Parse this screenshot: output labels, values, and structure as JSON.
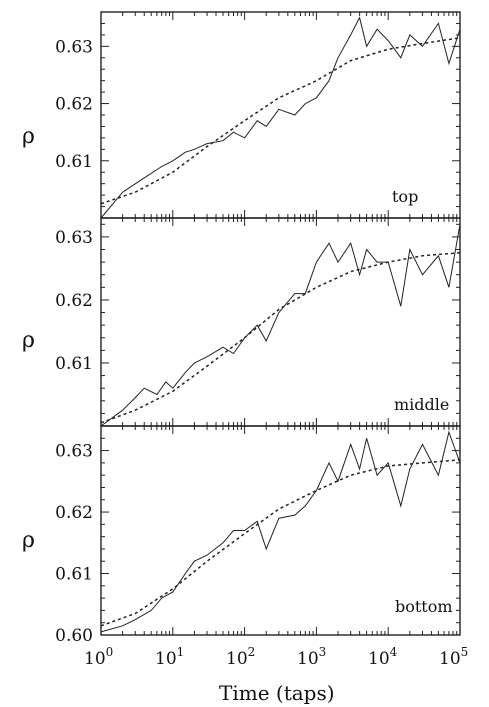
{
  "chart_data": [
    {
      "type": "line",
      "panel_label": "top",
      "ylabel": "ρ",
      "xlabel": "Time (taps)",
      "x_scale": "log",
      "xlim": [
        1,
        100000
      ],
      "ylim": [
        0.6,
        0.636
      ],
      "yticks": [
        0.61,
        0.62,
        0.63
      ],
      "ytick_labels": [
        "0.61",
        "0.62",
        "0.63"
      ],
      "series": [
        {
          "style": "solid",
          "x": [
            1,
            2,
            4,
            7,
            10,
            15,
            20,
            30,
            50,
            70,
            100,
            150,
            200,
            300,
            500,
            700,
            1000,
            1500,
            2000,
            3000,
            4000,
            5000,
            7000,
            10000,
            15000,
            20000,
            30000,
            50000,
            70000,
            100000
          ],
          "y": [
            0.6,
            0.6045,
            0.607,
            0.609,
            0.61,
            0.6115,
            0.612,
            0.613,
            0.6135,
            0.615,
            0.614,
            0.617,
            0.616,
            0.619,
            0.618,
            0.62,
            0.621,
            0.624,
            0.628,
            0.632,
            0.635,
            0.63,
            0.633,
            0.631,
            0.628,
            0.632,
            0.63,
            0.634,
            0.627,
            0.633
          ]
        },
        {
          "style": "dashed",
          "x": [
            1,
            3,
            10,
            30,
            100,
            300,
            1000,
            3000,
            10000,
            30000,
            100000
          ],
          "y": [
            0.6025,
            0.6045,
            0.608,
            0.6125,
            0.617,
            0.621,
            0.624,
            0.6275,
            0.6295,
            0.6305,
            0.6315
          ]
        }
      ]
    },
    {
      "type": "line",
      "panel_label": "middle",
      "ylabel": "ρ",
      "xlabel": "Time (taps)",
      "x_scale": "log",
      "xlim": [
        1,
        100000
      ],
      "ylim": [
        0.6,
        0.633
      ],
      "yticks": [
        0.61,
        0.62,
        0.63
      ],
      "ytick_labels": [
        "0.61",
        "0.62",
        "0.63"
      ],
      "series": [
        {
          "style": "solid",
          "x": [
            1,
            2,
            3,
            4,
            6,
            8,
            10,
            15,
            20,
            30,
            50,
            70,
            100,
            150,
            200,
            300,
            500,
            700,
            1000,
            1500,
            2000,
            3000,
            4000,
            5000,
            7000,
            10000,
            15000,
            20000,
            30000,
            50000,
            70000,
            100000
          ],
          "y": [
            0.6,
            0.6025,
            0.6045,
            0.606,
            0.605,
            0.607,
            0.606,
            0.6085,
            0.61,
            0.611,
            0.6125,
            0.6115,
            0.614,
            0.616,
            0.6135,
            0.618,
            0.621,
            0.621,
            0.626,
            0.629,
            0.626,
            0.629,
            0.624,
            0.628,
            0.626,
            0.626,
            0.619,
            0.628,
            0.624,
            0.627,
            0.622,
            0.632
          ]
        },
        {
          "style": "dashed",
          "x": [
            1,
            3,
            10,
            30,
            100,
            300,
            1000,
            3000,
            10000,
            30000,
            100000
          ],
          "y": [
            0.6005,
            0.6025,
            0.6055,
            0.6095,
            0.614,
            0.6185,
            0.622,
            0.6245,
            0.626,
            0.627,
            0.6275
          ]
        }
      ]
    },
    {
      "type": "line",
      "panel_label": "bottom",
      "ylabel": "ρ",
      "xlabel": "Time (taps)",
      "x_scale": "log",
      "xlim": [
        1,
        100000
      ],
      "ylim": [
        0.6,
        0.634
      ],
      "yticks": [
        0.6,
        0.61,
        0.62,
        0.63
      ],
      "ytick_labels": [
        "0.60",
        "0.61",
        "0.62",
        "0.63"
      ],
      "xticks": [
        1,
        10,
        100,
        1000,
        10000,
        100000
      ],
      "series": [
        {
          "style": "solid",
          "x": [
            1,
            2,
            3,
            5,
            7,
            10,
            15,
            20,
            30,
            50,
            70,
            100,
            150,
            200,
            300,
            500,
            700,
            1000,
            1500,
            2000,
            3000,
            4000,
            5000,
            7000,
            10000,
            15000,
            20000,
            30000,
            50000,
            70000,
            100000
          ],
          "y": [
            0.6005,
            0.6015,
            0.6025,
            0.604,
            0.606,
            0.607,
            0.61,
            0.612,
            0.613,
            0.615,
            0.617,
            0.617,
            0.6185,
            0.614,
            0.619,
            0.6195,
            0.621,
            0.6235,
            0.628,
            0.625,
            0.631,
            0.627,
            0.632,
            0.626,
            0.628,
            0.621,
            0.627,
            0.631,
            0.626,
            0.633,
            0.628
          ]
        },
        {
          "style": "dashed",
          "x": [
            1,
            3,
            10,
            30,
            100,
            300,
            1000,
            3000,
            10000,
            30000,
            100000
          ],
          "y": [
            0.6015,
            0.6035,
            0.6075,
            0.612,
            0.6165,
            0.6205,
            0.6235,
            0.626,
            0.6275,
            0.628,
            0.6285
          ]
        }
      ]
    }
  ],
  "x_tick_labels": [
    {
      "base": "10",
      "exp": "0"
    },
    {
      "base": "10",
      "exp": "1"
    },
    {
      "base": "10",
      "exp": "2"
    },
    {
      "base": "10",
      "exp": "3"
    },
    {
      "base": "10",
      "exp": "4"
    },
    {
      "base": "10",
      "exp": "5"
    }
  ]
}
